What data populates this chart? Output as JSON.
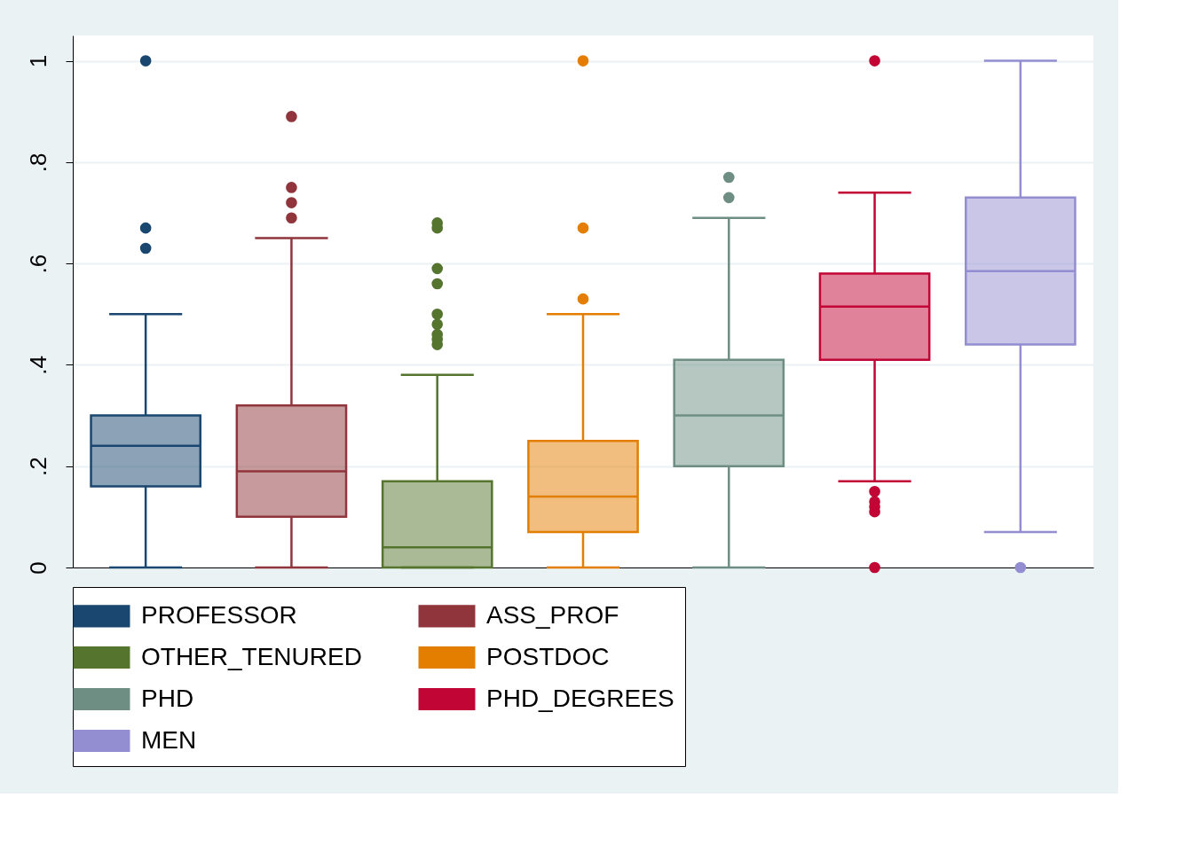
{
  "chart_data": {
    "type": "box",
    "categories": [
      null,
      null,
      null,
      null,
      null,
      null,
      null
    ],
    "ylim": [
      0,
      1.05
    ],
    "yticks": [
      {
        "value": 0,
        "label": "0"
      },
      {
        "value": 0.2,
        "label": ".2"
      },
      {
        "value": 0.4,
        "label": ".4"
      },
      {
        "value": 0.6,
        "label": ".6"
      },
      {
        "value": 0.8,
        "label": ".8"
      },
      {
        "value": 1,
        "label": "1"
      }
    ],
    "grid": "y",
    "legend": "bottom",
    "tick_labels": "y",
    "series": [
      {
        "name": "PROFESSOR",
        "color": "#1a476f",
        "boxes": [
          {
            "low": 0,
            "q1": 0.16,
            "median": 0.24,
            "q3": 0.3,
            "high": 0.5,
            "outliers": [
              0.63,
              0.67,
              1
            ]
          },
          null,
          null,
          null,
          null,
          null,
          null
        ]
      },
      {
        "name": "ASS_PROF",
        "color": "#90353b",
        "boxes": [
          null,
          {
            "low": 0,
            "q1": 0.1,
            "median": 0.19,
            "q3": 0.32,
            "high": 0.65,
            "outliers": [
              0.69,
              0.72,
              0.75,
              0.89
            ]
          },
          null,
          null,
          null,
          null,
          null
        ]
      },
      {
        "name": "OTHER_TENURED",
        "color": "#55752f",
        "boxes": [
          null,
          null,
          {
            "low": 0,
            "q1": 0,
            "median": 0.04,
            "q3": 0.17,
            "high": 0.38,
            "outliers": [
              0.44,
              0.45,
              0.46,
              0.48,
              0.5,
              0.56,
              0.59,
              0.67,
              0.68
            ]
          },
          null,
          null,
          null,
          null
        ]
      },
      {
        "name": "POSTDOC",
        "color": "#e37e00",
        "boxes": [
          null,
          null,
          null,
          {
            "low": 0,
            "q1": 0.07,
            "median": 0.14,
            "q3": 0.25,
            "high": 0.5,
            "outliers": [
              0.53,
              0.67,
              1
            ]
          },
          null,
          null,
          null
        ]
      },
      {
        "name": "PHD",
        "color": "#6e8e84",
        "boxes": [
          null,
          null,
          null,
          null,
          {
            "low": 0,
            "q1": 0.2,
            "median": 0.3,
            "q3": 0.41,
            "high": 0.69,
            "outliers": [
              0.73,
              0.77
            ]
          },
          null,
          null
        ]
      },
      {
        "name": "PHD_DEGREES",
        "color": "#c10534",
        "boxes": [
          null,
          null,
          null,
          null,
          null,
          {
            "low": 0.17,
            "q1": 0.41,
            "median": 0.515,
            "q3": 0.58,
            "high": 0.74,
            "outliers": [
              0,
              0.11,
              0.12,
              0.13,
              0.15,
              1
            ]
          },
          null
        ]
      },
      {
        "name": "MEN",
        "color": "#938dd2",
        "boxes": [
          null,
          null,
          null,
          null,
          null,
          null,
          {
            "low": 0.07,
            "q1": 0.44,
            "median": 0.585,
            "q3": 0.73,
            "high": 1,
            "outliers": [
              0
            ]
          }
        ]
      }
    ]
  }
}
